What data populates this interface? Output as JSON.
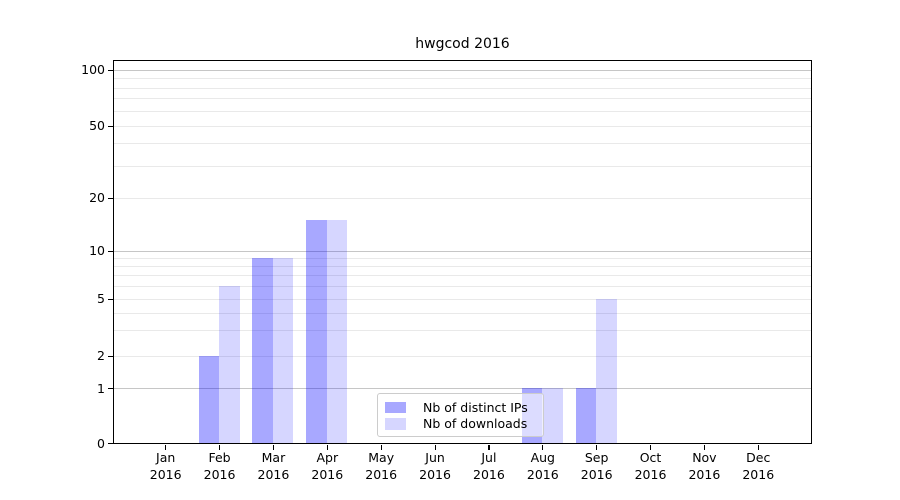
{
  "title": "hwgcod 2016",
  "chart_data": {
    "type": "bar",
    "title": "hwgcod 2016",
    "categories": [
      "Jan",
      "Feb",
      "Mar",
      "Apr",
      "May",
      "Jun",
      "Jul",
      "Aug",
      "Sep",
      "Oct",
      "Nov",
      "Dec"
    ],
    "category_year": "2016",
    "series": [
      {
        "name": "Nb of distinct IPs",
        "color": "rgba(0,0,255,0.34)",
        "values": [
          0,
          2,
          9,
          15,
          0,
          0,
          0,
          1,
          1,
          0,
          0,
          0
        ]
      },
      {
        "name": "Nb of downloads",
        "color": "rgba(0,0,255,0.16)",
        "values": [
          0,
          6,
          9,
          15,
          0,
          0,
          0,
          1,
          5,
          0,
          0,
          0
        ]
      }
    ],
    "y_ticks": [
      0,
      1,
      2,
      5,
      10,
      20,
      50,
      100
    ],
    "y_scale": "symlog",
    "ylim": [
      0,
      110
    ],
    "grid": "horizontal",
    "legend_position": "lower-center"
  },
  "colors": {
    "bar_dark": "#a8a8fa",
    "bar_light": "#d9d9fa",
    "major_grid": "#c6c6c6",
    "minor_grid": "#e9e9e9",
    "spine": "#000000",
    "text": "#000000",
    "legend_border": "#cccccc",
    "legend_bg": "rgba(255,255,255,0.6)"
  }
}
